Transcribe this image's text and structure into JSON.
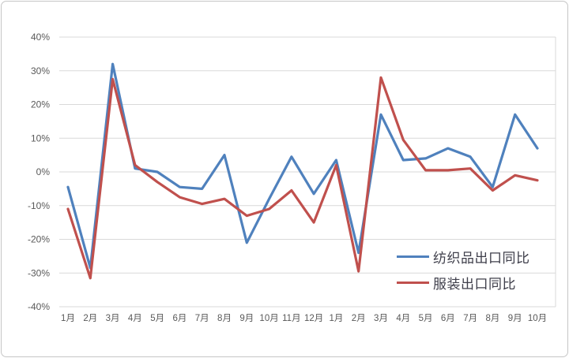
{
  "chart_data": {
    "type": "line",
    "title": "",
    "xlabel": "",
    "ylabel": "",
    "grid": "horizontal",
    "legend_position": "inside-bottom-right",
    "ylim": [
      -40,
      40
    ],
    "y_ticks": [
      {
        "label": "40%",
        "value": 40
      },
      {
        "label": "30%",
        "value": 30
      },
      {
        "label": "20%",
        "value": 20
      },
      {
        "label": "10%",
        "value": 10
      },
      {
        "label": "0%",
        "value": 0
      },
      {
        "label": "-10%",
        "value": -10
      },
      {
        "label": "-20%",
        "value": -20
      },
      {
        "label": "-30%",
        "value": -30
      },
      {
        "label": "-40%",
        "value": -40
      }
    ],
    "categories": [
      "1月",
      "2月",
      "3月",
      "4月",
      "5月",
      "6月",
      "7月",
      "8月",
      "9月",
      "10月",
      "11月",
      "12月",
      "1月",
      "2月",
      "3月",
      "4月",
      "5月",
      "6月",
      "7月",
      "8月",
      "9月",
      "10月"
    ],
    "series": [
      {
        "name": "纺织品出口同比",
        "color": "#4f81bd",
        "values": [
          -4.5,
          -28.5,
          32,
          1,
          0,
          -4.5,
          -5,
          5,
          -21,
          -8,
          4.5,
          -6.5,
          3.5,
          -24,
          17,
          3.5,
          4,
          7,
          4.5,
          -4.5,
          17,
          7
        ]
      },
      {
        "name": "服装出口同比",
        "color": "#c0504d",
        "values": [
          -11,
          -31.5,
          27.5,
          2,
          -3,
          -7.5,
          -9.5,
          -8,
          -13,
          -11,
          -5.5,
          -15,
          2,
          -29.5,
          28,
          9.5,
          0.5,
          0.5,
          1,
          -5.5,
          -1,
          -2.5
        ]
      }
    ]
  },
  "colors": {
    "grid": "#d9d9d9",
    "axis_text": "#595959",
    "legend_text": "#3e3e4a",
    "background": "#ffffff",
    "frame_border": "#c6c6c6"
  }
}
